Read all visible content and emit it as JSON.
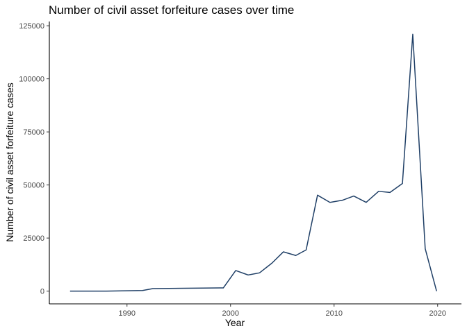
{
  "chart_data": {
    "type": "line",
    "title": "Number of civil asset forfeiture cases over time",
    "xlabel": "Year",
    "ylabel": "Number of civil asset forfeiture cases",
    "xlim": [
      1982.5,
      2022.3
    ],
    "ylim": [
      -6000,
      127000
    ],
    "xticks": [
      1990,
      2000,
      2010,
      2020
    ],
    "yticks": [
      0,
      25000,
      50000,
      75000,
      100000,
      125000
    ],
    "grid": false,
    "line_color": "#1f3f66",
    "x": [
      1984.5,
      1988,
      1991.5,
      1992.5,
      1999,
      1999.3,
      2000.5,
      2001.7,
      2002.8,
      2004,
      2005.1,
      2006.3,
      2007.3,
      2008.4,
      2009.6,
      2010.8,
      2011.9,
      2013.1,
      2014.3,
      2015.4,
      2016.6,
      2017.6,
      2018.8,
      2019.9
    ],
    "y": [
      0,
      0,
      300,
      1200,
      1500,
      1500,
      9700,
      7600,
      8600,
      13200,
      18500,
      16800,
      19400,
      45200,
      41800,
      42800,
      44800,
      41800,
      47000,
      46500,
      50700,
      121000,
      20000,
      0
    ]
  }
}
